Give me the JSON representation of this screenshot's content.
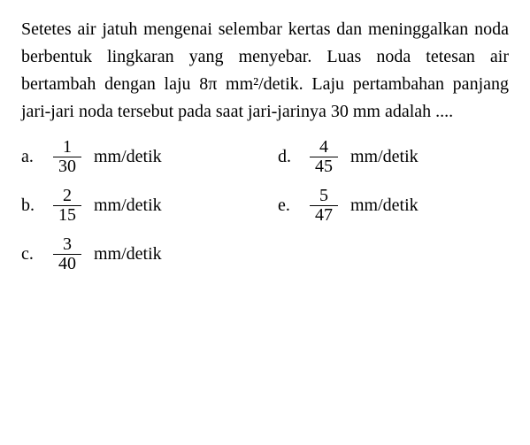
{
  "style": {
    "font_size_pt": 20,
    "font_family": "Georgia, Times New Roman, serif",
    "text_color": "#000000",
    "background_color": "#ffffff",
    "line_height": 1.55
  },
  "question": {
    "pre_text": "Setetes air jatuh mengenai selembar kertas dan meninggalkan noda berbentuk lingkaran yang menyebar. Luas noda tetesan air bertambah dengan laju ",
    "math_expr": "8π mm²/detik.",
    "post_text": " Laju pertambahan panjang jari-jari noda tersebut pada saat jari-jarinya 30 mm adalah ...."
  },
  "options": [
    {
      "letter": "a.",
      "numerator": "1",
      "denominator": "30",
      "unit": "mm/detik"
    },
    {
      "letter": "b.",
      "numerator": "2",
      "denominator": "15",
      "unit": "mm/detik"
    },
    {
      "letter": "c.",
      "numerator": "3",
      "denominator": "40",
      "unit": "mm/detik"
    },
    {
      "letter": "d.",
      "numerator": "4",
      "denominator": "45",
      "unit": "mm/detik"
    },
    {
      "letter": "e.",
      "numerator": "5",
      "denominator": "47",
      "unit": "mm/detik"
    }
  ],
  "layout": {
    "rows": [
      [
        "a",
        "d"
      ],
      [
        "b",
        "e"
      ],
      [
        "c",
        null
      ]
    ]
  }
}
